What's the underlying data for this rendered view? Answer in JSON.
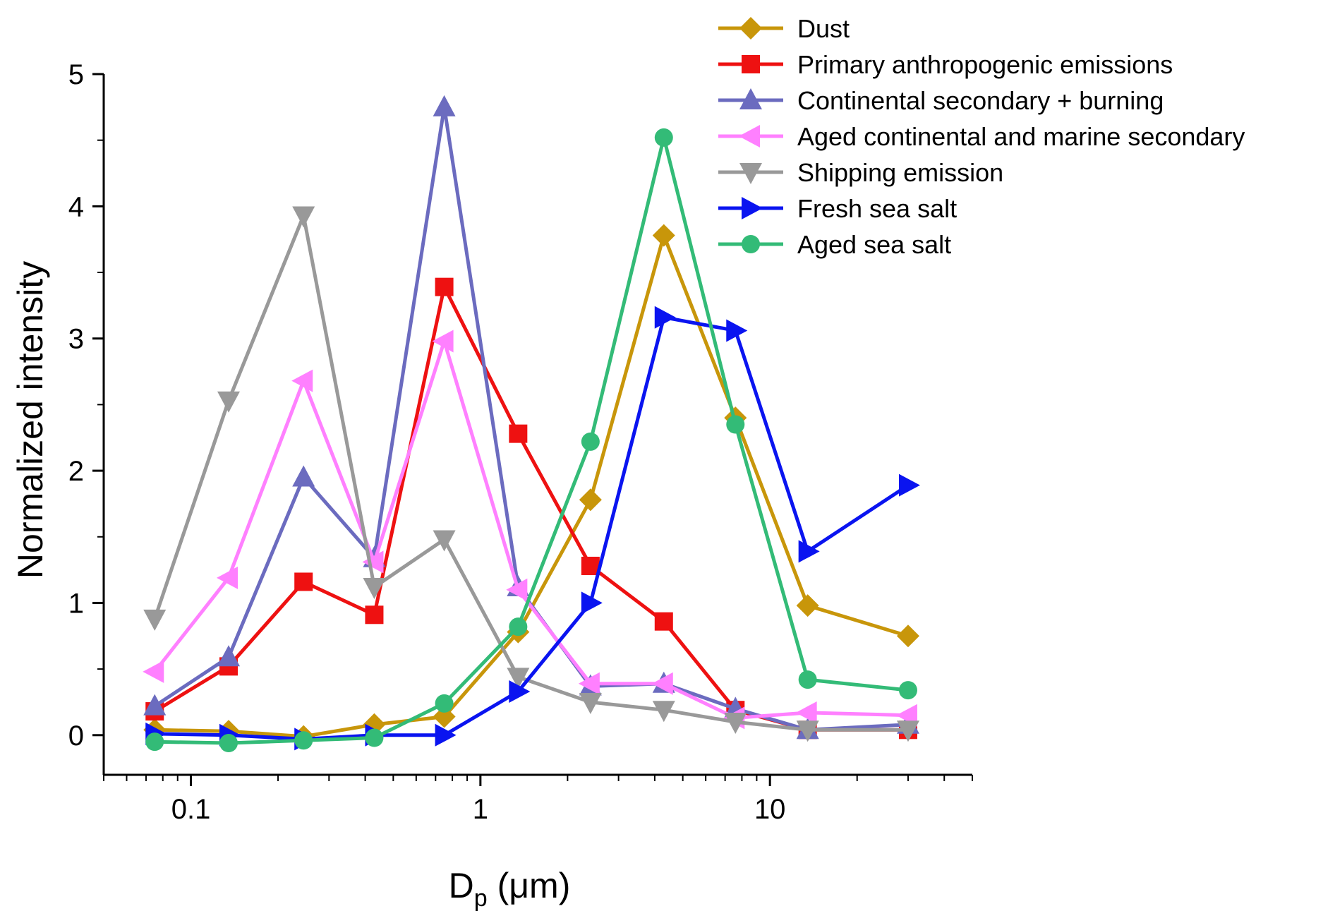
{
  "chart_data": {
    "type": "line",
    "xlabel": {
      "main": "D",
      "sub": "p",
      "unit": " (μm)"
    },
    "ylabel": "Normalized intensity",
    "x_scale": "log",
    "xlim": [
      0.05,
      50
    ],
    "ylim": [
      -0.3,
      5
    ],
    "x_tick_labels": [
      "0.1",
      "1",
      "10"
    ],
    "y_tick_labels": [
      "0",
      "1",
      "2",
      "3",
      "4",
      "5"
    ],
    "legend_position": "top-right",
    "x": [
      0.075,
      0.135,
      0.245,
      0.43,
      0.75,
      1.35,
      2.4,
      4.3,
      7.6,
      13.5,
      30
    ],
    "series": [
      {
        "name": "Dust",
        "color": "#c8960a",
        "marker": "diamond",
        "values": [
          0.04,
          0.03,
          -0.01,
          0.08,
          0.14,
          0.78,
          1.78,
          3.78,
          2.4,
          0.98,
          0.75
        ]
      },
      {
        "name": "Primary anthropogenic emissions",
        "color": "#ee1111",
        "marker": "square",
        "values": [
          0.18,
          0.52,
          1.16,
          0.91,
          3.39,
          2.28,
          1.28,
          0.86,
          0.19,
          0.04,
          0.04
        ]
      },
      {
        "name": "Continental secondary + burning",
        "color": "#6b6bbf",
        "marker": "triangle-up",
        "values": [
          0.22,
          0.59,
          1.95,
          1.34,
          4.75,
          1.12,
          0.37,
          0.39,
          0.2,
          0.04,
          0.08
        ]
      },
      {
        "name": "Aged continental and marine secondary",
        "color": "#ff80ff",
        "marker": "triangle-left",
        "values": [
          0.48,
          1.19,
          2.68,
          1.31,
          2.98,
          1.1,
          0.39,
          0.39,
          0.13,
          0.17,
          0.15
        ]
      },
      {
        "name": "Shipping emission",
        "color": "#999999",
        "marker": "triangle-down",
        "values": [
          0.88,
          2.53,
          3.93,
          1.12,
          1.48,
          0.44,
          0.25,
          0.19,
          0.1,
          0.04,
          0.04
        ]
      },
      {
        "name": "Fresh sea salt",
        "color": "#0a14f0",
        "marker": "triangle-right",
        "values": [
          0.01,
          0.0,
          -0.03,
          0.0,
          0.0,
          0.33,
          1.0,
          3.16,
          3.06,
          1.39,
          1.89
        ]
      },
      {
        "name": "Aged sea salt",
        "color": "#33bb77",
        "marker": "circle",
        "values": [
          -0.05,
          -0.06,
          -0.04,
          -0.02,
          0.24,
          0.82,
          2.22,
          4.52,
          2.35,
          0.42,
          0.34
        ]
      }
    ]
  }
}
